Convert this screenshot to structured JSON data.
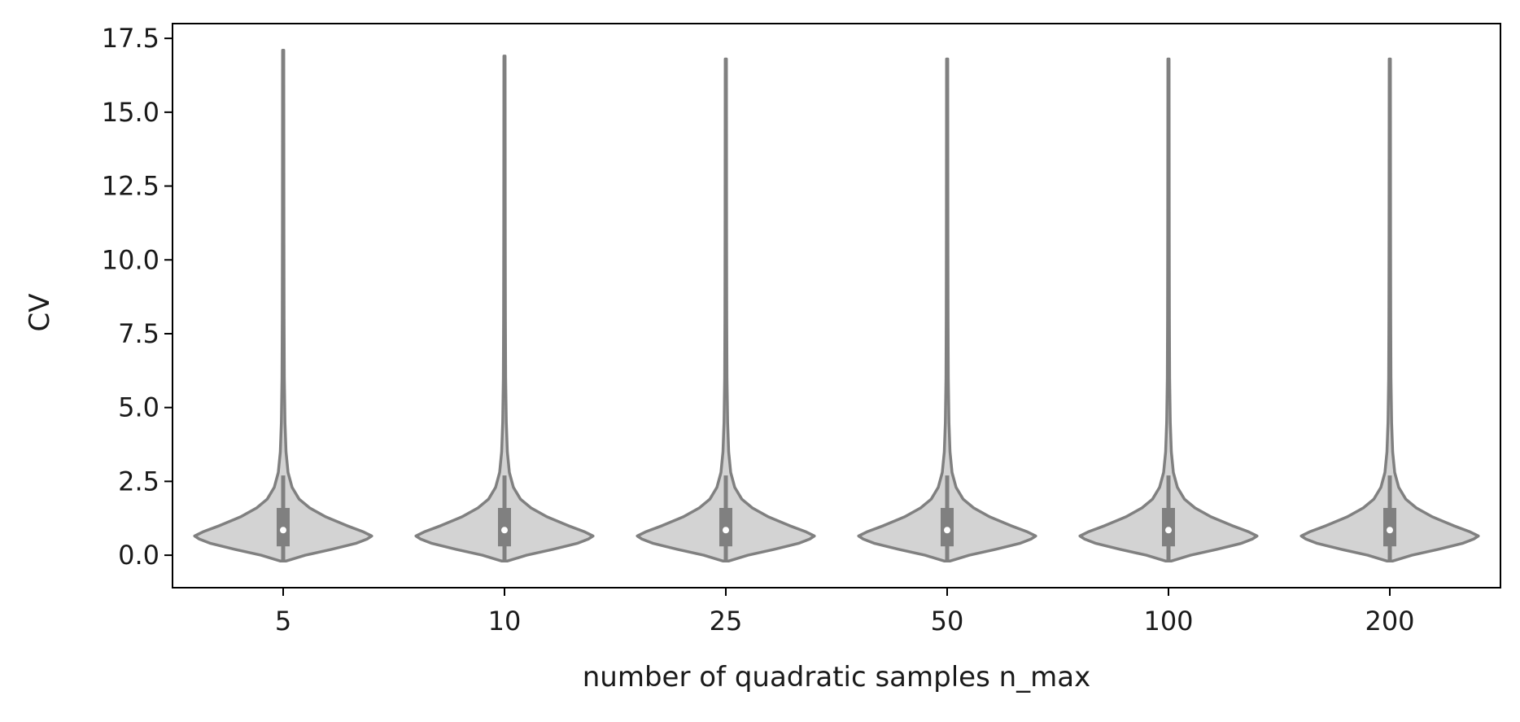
{
  "chart_data": {
    "type": "violin",
    "title": "",
    "xlabel": "number of quadratic samples n_max",
    "ylabel": "CV",
    "categories": [
      "5",
      "10",
      "25",
      "50",
      "100",
      "200"
    ],
    "ylim": [
      -1.1,
      18.0
    ],
    "yticks": [
      0.0,
      2.5,
      5.0,
      7.5,
      10.0,
      12.5,
      15.0,
      17.5
    ],
    "ytick_labels": [
      "0.0",
      "2.5",
      "5.0",
      "7.5",
      "10.0",
      "12.5",
      "15.0",
      "17.5"
    ],
    "grid": false,
    "legend": "none",
    "violin_fill": "#d3d3d3",
    "violin_stroke": "#808080",
    "median_color": "#ffffff",
    "summary": [
      {
        "category": "5",
        "min": -0.2,
        "q1": 0.3,
        "median": 0.85,
        "q3": 1.6,
        "whisker_high": 2.7,
        "max": 17.1
      },
      {
        "category": "10",
        "min": -0.2,
        "q1": 0.3,
        "median": 0.85,
        "q3": 1.6,
        "whisker_high": 2.7,
        "max": 16.9
      },
      {
        "category": "25",
        "min": -0.2,
        "q1": 0.3,
        "median": 0.85,
        "q3": 1.6,
        "whisker_high": 2.7,
        "max": 16.8
      },
      {
        "category": "50",
        "min": -0.2,
        "q1": 0.3,
        "median": 0.85,
        "q3": 1.6,
        "whisker_high": 2.7,
        "max": 16.8
      },
      {
        "category": "100",
        "min": -0.2,
        "q1": 0.3,
        "median": 0.85,
        "q3": 1.6,
        "whisker_high": 2.7,
        "max": 16.8
      },
      {
        "category": "200",
        "min": -0.2,
        "q1": 0.3,
        "median": 0.85,
        "q3": 1.6,
        "whisker_high": 2.7,
        "max": 16.8
      }
    ],
    "density_profile": [
      {
        "y": -0.2,
        "w": 0.03
      },
      {
        "y": 0.0,
        "w": 0.25
      },
      {
        "y": 0.2,
        "w": 0.55
      },
      {
        "y": 0.4,
        "w": 0.82
      },
      {
        "y": 0.55,
        "w": 0.95
      },
      {
        "y": 0.65,
        "w": 1.0
      },
      {
        "y": 0.8,
        "w": 0.9
      },
      {
        "y": 1.0,
        "w": 0.72
      },
      {
        "y": 1.3,
        "w": 0.48
      },
      {
        "y": 1.6,
        "w": 0.3
      },
      {
        "y": 1.9,
        "w": 0.18
      },
      {
        "y": 2.3,
        "w": 0.1
      },
      {
        "y": 2.8,
        "w": 0.055
      },
      {
        "y": 3.5,
        "w": 0.032
      },
      {
        "y": 4.5,
        "w": 0.02
      },
      {
        "y": 6.0,
        "w": 0.013
      },
      {
        "y": 8.0,
        "w": 0.01
      },
      {
        "y": 11.0,
        "w": 0.008
      },
      {
        "y": 14.0,
        "w": 0.007
      }
    ]
  }
}
